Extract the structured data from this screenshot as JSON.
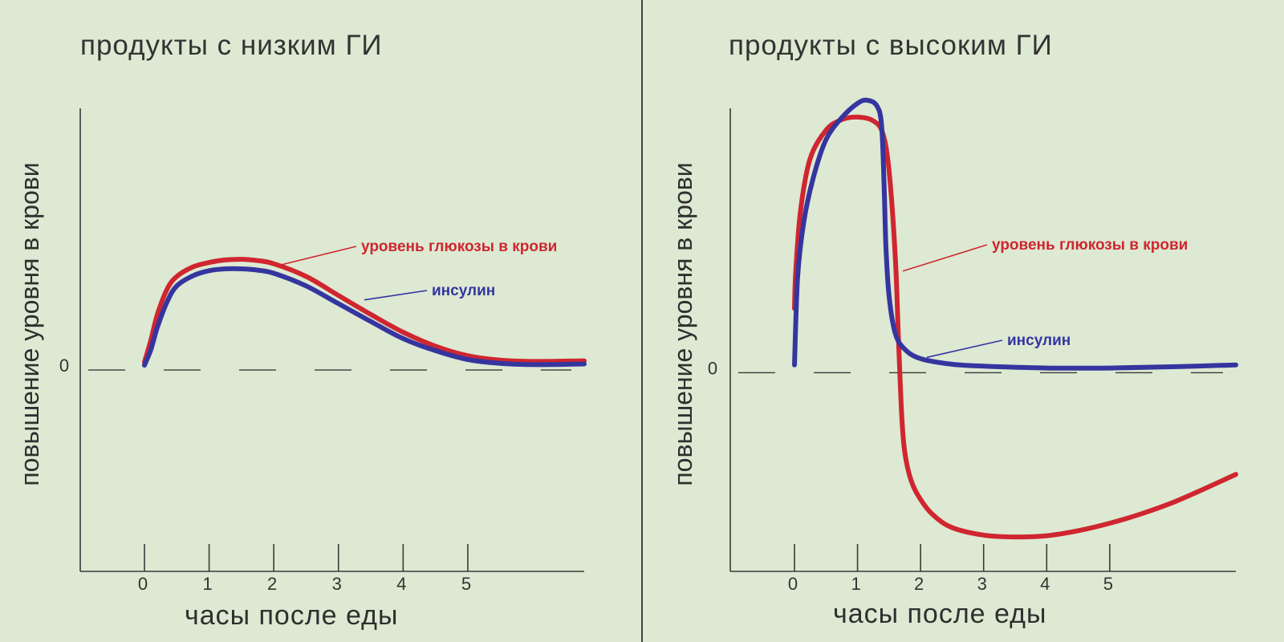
{
  "colors": {
    "background": "#dde9d2",
    "glucose": "#cf2630",
    "insulin": "#3535a0",
    "axis": "#3a3a3a",
    "divider": "#404040"
  },
  "chart_data": [
    {
      "type": "line",
      "title": "продукты с низким ГИ",
      "xlabel": "часы после еды",
      "ylabel": "повышение уровня в крови",
      "xticks": [
        "0",
        "1",
        "2",
        "3",
        "4",
        "5"
      ],
      "y_zero_label": "0",
      "xlim": [
        -1,
        6.8
      ],
      "ylim": [
        -3.2,
        4.1
      ],
      "baseline_dashed": true,
      "series": [
        {
          "name": "уровень глюкозы в крови",
          "color": "#cf2630",
          "x": [
            0,
            0.1,
            0.2,
            0.35,
            0.5,
            0.75,
            1.0,
            1.25,
            1.5,
            1.75,
            2.0,
            2.5,
            3.0,
            3.5,
            4.0,
            4.5,
            5.0,
            5.5,
            6.0,
            6.8
          ],
          "y": [
            0.1,
            0.45,
            0.85,
            1.25,
            1.45,
            1.6,
            1.67,
            1.71,
            1.72,
            1.7,
            1.65,
            1.45,
            1.15,
            0.85,
            0.57,
            0.35,
            0.2,
            0.13,
            0.11,
            0.12
          ]
        },
        {
          "name": "инсулин",
          "color": "#3535a0",
          "x": [
            0,
            0.1,
            0.2,
            0.35,
            0.5,
            0.75,
            1.0,
            1.25,
            1.5,
            1.75,
            2.0,
            2.5,
            3.0,
            3.5,
            4.0,
            4.5,
            5.0,
            5.5,
            6.0,
            6.8
          ],
          "y": [
            0.05,
            0.3,
            0.65,
            1.05,
            1.3,
            1.46,
            1.54,
            1.57,
            1.57,
            1.55,
            1.5,
            1.3,
            1.02,
            0.74,
            0.47,
            0.28,
            0.14,
            0.08,
            0.06,
            0.07
          ]
        }
      ],
      "annotations": [
        {
          "text": "уровень глюкозы в крови",
          "series": "уровень глюкозы в крови",
          "point": [
            2.1,
            1.63
          ]
        },
        {
          "text": "инсулин",
          "series": "инсулин",
          "point": [
            3.4,
            1.08
          ]
        }
      ]
    },
    {
      "type": "line",
      "title": "продукты с высоким ГИ",
      "xlabel": "часы после еды",
      "ylabel": "повышение уровня в крови",
      "xticks": [
        "0",
        "1",
        "2",
        "3",
        "4",
        "5"
      ],
      "y_zero_label": "0",
      "xlim": [
        -1,
        7.0
      ],
      "ylim": [
        -3.2,
        4.2
      ],
      "baseline_dashed": true,
      "series": [
        {
          "name": "уровень глюкозы в крови",
          "color": "#cf2630",
          "x": [
            0,
            0.02,
            0.1,
            0.25,
            0.5,
            0.75,
            1.0,
            1.25,
            1.4,
            1.5,
            1.6,
            1.65,
            1.7,
            1.75,
            1.85,
            2.0,
            2.2,
            2.5,
            3.0,
            3.5,
            4.0,
            4.5,
            5.0,
            5.5,
            6.0,
            6.5,
            7.0
          ],
          "y": [
            1.0,
            1.6,
            2.6,
            3.4,
            3.85,
            4.02,
            4.06,
            4.0,
            3.8,
            3.2,
            1.8,
            0.5,
            -0.7,
            -1.3,
            -1.75,
            -2.05,
            -2.3,
            -2.5,
            -2.62,
            -2.65,
            -2.63,
            -2.55,
            -2.43,
            -2.28,
            -2.1,
            -1.88,
            -1.65
          ]
        },
        {
          "name": "инсулин",
          "color": "#3535a0",
          "x": [
            0,
            0.05,
            0.15,
            0.3,
            0.5,
            0.75,
            1.0,
            1.15,
            1.3,
            1.38,
            1.42,
            1.45,
            1.5,
            1.6,
            1.75,
            2.0,
            2.5,
            3.0,
            4.0,
            5.0,
            6.0,
            7.0
          ],
          "y": [
            0.1,
            1.5,
            2.4,
            3.1,
            3.7,
            4.05,
            4.28,
            4.33,
            4.25,
            3.95,
            3.0,
            2.0,
            1.2,
            0.6,
            0.35,
            0.2,
            0.11,
            0.08,
            0.05,
            0.05,
            0.07,
            0.1
          ]
        }
      ],
      "annotations": [
        {
          "text": "уровень глюкозы в крови",
          "series": "уровень глюкозы в крови",
          "point": [
            1.72,
            1.6
          ]
        },
        {
          "text": "инсулин",
          "series": "инсулин",
          "point": [
            2.1,
            0.22
          ]
        }
      ]
    }
  ]
}
